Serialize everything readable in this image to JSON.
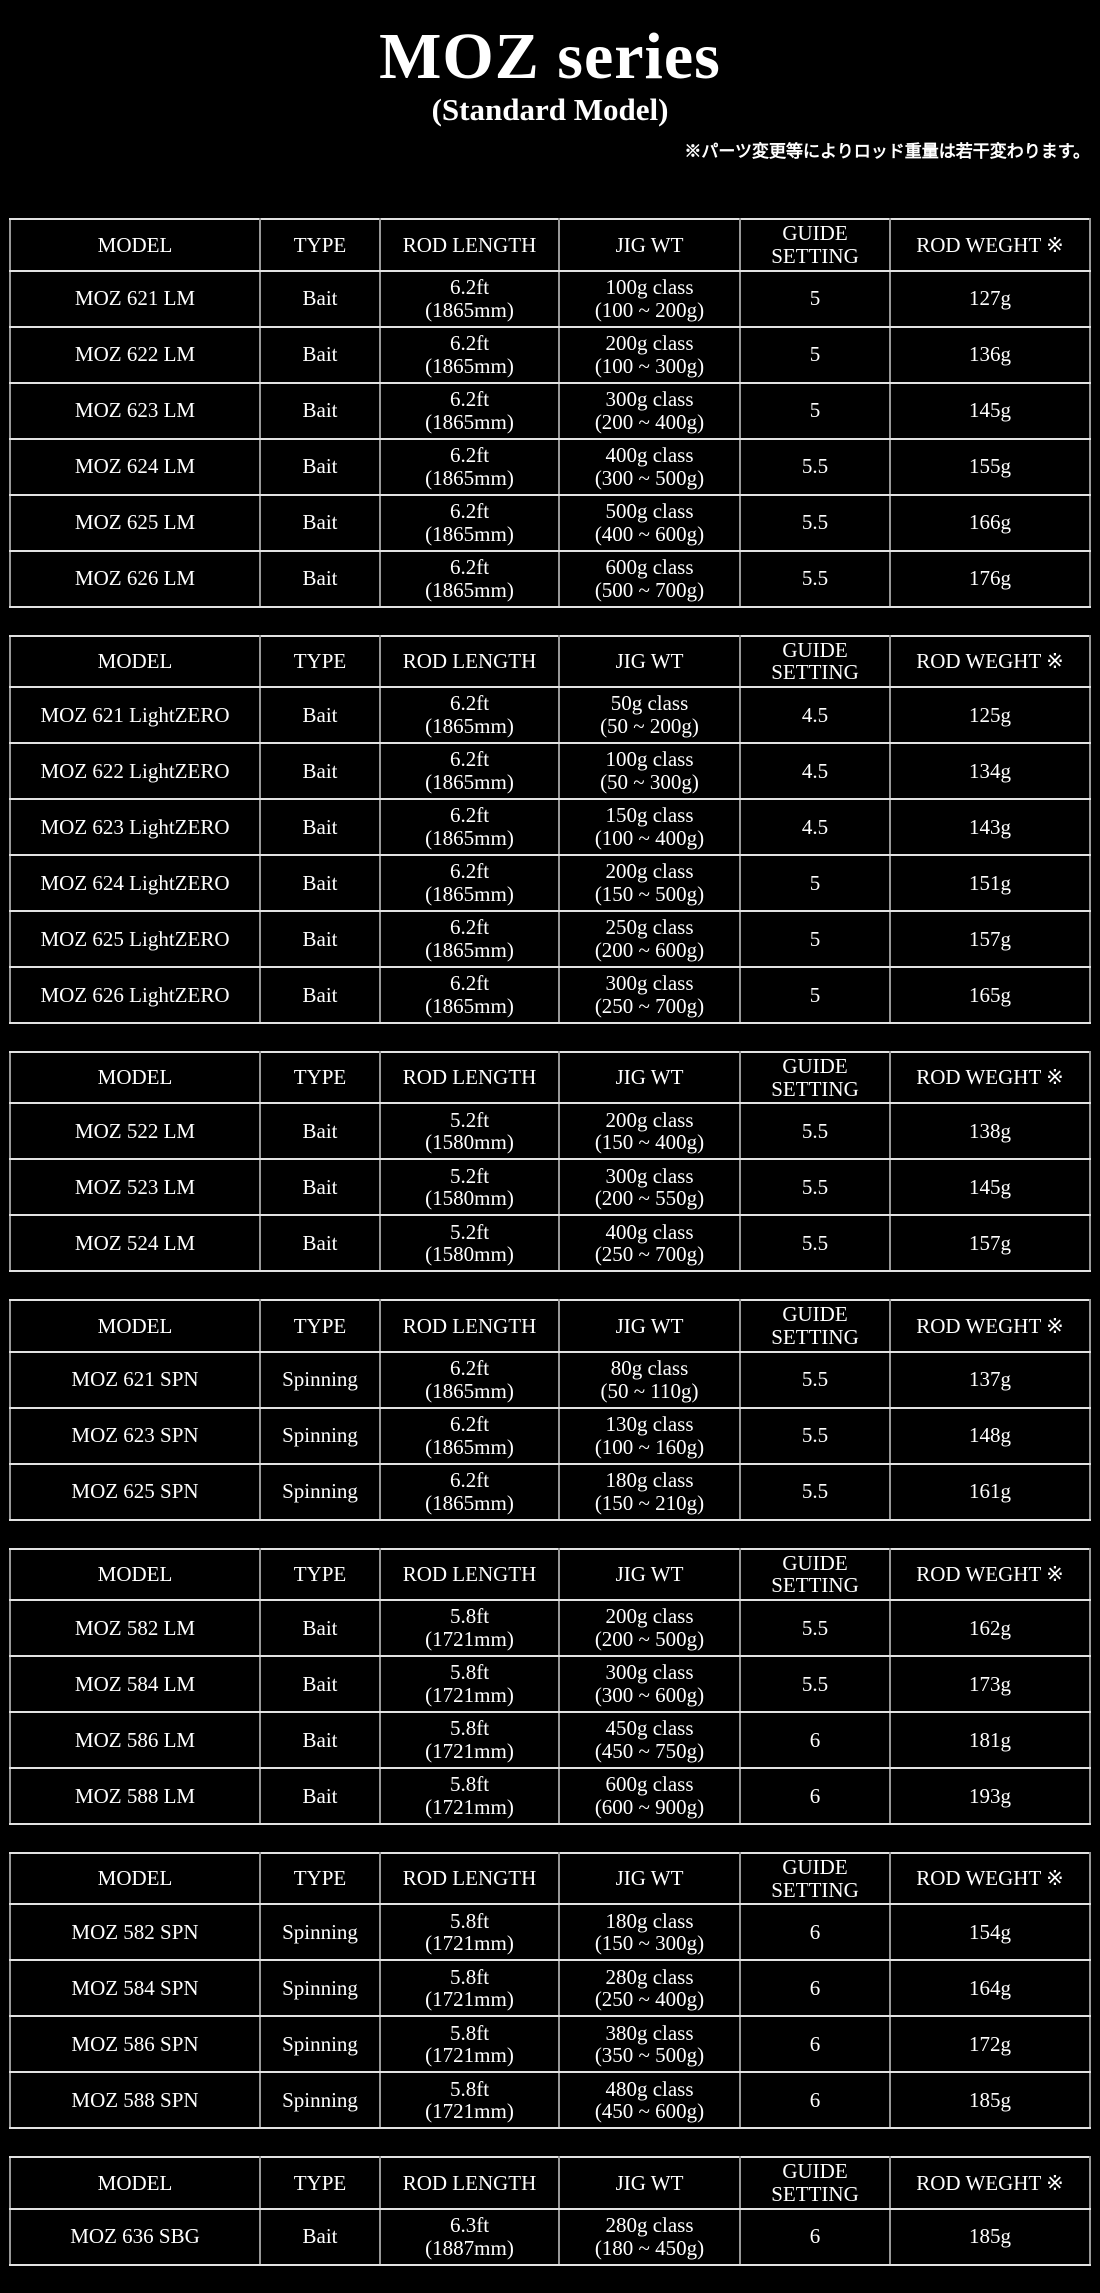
{
  "title": "MOZ series",
  "subtitle": "(Standard Model)",
  "note": "※パーツ変更等によりロッド重量は若干変わります。",
  "colors": {
    "background": "#000000",
    "text": "#ffffff",
    "table_border_light": "#e2e2e2",
    "table_border_gray": "#989898"
  },
  "columns": [
    "MODEL",
    "TYPE",
    "ROD LENGTH",
    "JIG WT",
    "GUIDE\nSETTING",
    "ROD WEGHT ※"
  ],
  "tables": [
    {
      "rows": [
        {
          "model": "MOZ 621 LM",
          "type": "Bait",
          "rod_length": "6.2ft\n(1865mm)",
          "jig_wt": "100g class\n(100 ~ 200g)",
          "guide_setting": "5",
          "rod_weight": "127g"
        },
        {
          "model": "MOZ 622 LM",
          "type": "Bait",
          "rod_length": "6.2ft\n(1865mm)",
          "jig_wt": "200g class\n(100 ~ 300g)",
          "guide_setting": "5",
          "rod_weight": "136g"
        },
        {
          "model": "MOZ 623 LM",
          "type": "Bait",
          "rod_length": "6.2ft\n(1865mm)",
          "jig_wt": "300g class\n(200 ~ 400g)",
          "guide_setting": "5",
          "rod_weight": "145g"
        },
        {
          "model": "MOZ 624 LM",
          "type": "Bait",
          "rod_length": "6.2ft\n(1865mm)",
          "jig_wt": "400g class\n(300 ~ 500g)",
          "guide_setting": "5.5",
          "rod_weight": "155g"
        },
        {
          "model": "MOZ 625 LM",
          "type": "Bait",
          "rod_length": "6.2ft\n(1865mm)",
          "jig_wt": "500g class\n(400 ~ 600g)",
          "guide_setting": "5.5",
          "rod_weight": "166g"
        },
        {
          "model": "MOZ 626 LM",
          "type": "Bait",
          "rod_length": "6.2ft\n(1865mm)",
          "jig_wt": "600g class\n(500 ~ 700g)",
          "guide_setting": "5.5",
          "rod_weight": "176g"
        }
      ]
    },
    {
      "rows": [
        {
          "model": "MOZ 621 LightZERO",
          "type": "Bait",
          "rod_length": "6.2ft\n(1865mm)",
          "jig_wt": "50g class\n(50 ~ 200g)",
          "guide_setting": "4.5",
          "rod_weight": "125g"
        },
        {
          "model": "MOZ 622 LightZERO",
          "type": "Bait",
          "rod_length": "6.2ft\n(1865mm)",
          "jig_wt": "100g class\n(50 ~ 300g)",
          "guide_setting": "4.5",
          "rod_weight": "134g"
        },
        {
          "model": "MOZ 623 LightZERO",
          "type": "Bait",
          "rod_length": "6.2ft\n(1865mm)",
          "jig_wt": "150g class\n(100 ~ 400g)",
          "guide_setting": "4.5",
          "rod_weight": "143g"
        },
        {
          "model": "MOZ 624 LightZERO",
          "type": "Bait",
          "rod_length": "6.2ft\n(1865mm)",
          "jig_wt": "200g class\n(150 ~ 500g)",
          "guide_setting": "5",
          "rod_weight": "151g"
        },
        {
          "model": "MOZ 625 LightZERO",
          "type": "Bait",
          "rod_length": "6.2ft\n(1865mm)",
          "jig_wt": "250g class\n(200 ~ 600g)",
          "guide_setting": "5",
          "rod_weight": "157g"
        },
        {
          "model": "MOZ 626 LightZERO",
          "type": "Bait",
          "rod_length": "6.2ft\n(1865mm)",
          "jig_wt": "300g class\n(250 ~ 700g)",
          "guide_setting": "5",
          "rod_weight": "165g"
        }
      ]
    },
    {
      "rows": [
        {
          "model": "MOZ 522 LM",
          "type": "Bait",
          "rod_length": "5.2ft\n(1580mm)",
          "jig_wt": "200g class\n(150 ~ 400g)",
          "guide_setting": "5.5",
          "rod_weight": "138g"
        },
        {
          "model": "MOZ 523 LM",
          "type": "Bait",
          "rod_length": "5.2ft\n(1580mm)",
          "jig_wt": "300g class\n(200 ~ 550g)",
          "guide_setting": "5.5",
          "rod_weight": "145g"
        },
        {
          "model": "MOZ 524 LM",
          "type": "Bait",
          "rod_length": "5.2ft\n(1580mm)",
          "jig_wt": "400g class\n(250 ~ 700g)",
          "guide_setting": "5.5",
          "rod_weight": "157g"
        }
      ]
    },
    {
      "rows": [
        {
          "model": "MOZ 621 SPN",
          "type": "Spinning",
          "rod_length": "6.2ft\n(1865mm)",
          "jig_wt": "80g class\n(50 ~ 110g)",
          "guide_setting": "5.5",
          "rod_weight": "137g"
        },
        {
          "model": "MOZ 623 SPN",
          "type": "Spinning",
          "rod_length": "6.2ft\n(1865mm)",
          "jig_wt": "130g class\n(100 ~ 160g)",
          "guide_setting": "5.5",
          "rod_weight": "148g"
        },
        {
          "model": "MOZ 625 SPN",
          "type": "Spinning",
          "rod_length": "6.2ft\n(1865mm)",
          "jig_wt": "180g class\n(150 ~ 210g)",
          "guide_setting": "5.5",
          "rod_weight": "161g"
        }
      ]
    },
    {
      "rows": [
        {
          "model": "MOZ 582 LM",
          "type": "Bait",
          "rod_length": "5.8ft\n(1721mm)",
          "jig_wt": "200g class\n(200 ~ 500g)",
          "guide_setting": "5.5",
          "rod_weight": "162g"
        },
        {
          "model": "MOZ 584 LM",
          "type": "Bait",
          "rod_length": "5.8ft\n(1721mm)",
          "jig_wt": "300g class\n(300 ~ 600g)",
          "guide_setting": "5.5",
          "rod_weight": "173g"
        },
        {
          "model": "MOZ 586 LM",
          "type": "Bait",
          "rod_length": "5.8ft\n(1721mm)",
          "jig_wt": "450g class\n(450 ~ 750g)",
          "guide_setting": "6",
          "rod_weight": "181g"
        },
        {
          "model": "MOZ 588 LM",
          "type": "Bait",
          "rod_length": "5.8ft\n(1721mm)",
          "jig_wt": "600g class\n(600 ~ 900g)",
          "guide_setting": "6",
          "rod_weight": "193g"
        }
      ]
    },
    {
      "rows": [
        {
          "model": "MOZ 582 SPN",
          "type": "Spinning",
          "rod_length": "5.8ft\n(1721mm)",
          "jig_wt": "180g class\n(150 ~ 300g)",
          "guide_setting": "6",
          "rod_weight": "154g"
        },
        {
          "model": "MOZ 584 SPN",
          "type": "Spinning",
          "rod_length": "5.8ft\n(1721mm)",
          "jig_wt": "280g class\n(250 ~ 400g)",
          "guide_setting": "6",
          "rod_weight": "164g"
        },
        {
          "model": "MOZ 586 SPN",
          "type": "Spinning",
          "rod_length": "5.8ft\n(1721mm)",
          "jig_wt": "380g class\n(350 ~ 500g)",
          "guide_setting": "6",
          "rod_weight": "172g"
        },
        {
          "model": "MOZ 588 SPN",
          "type": "Spinning",
          "rod_length": "5.8ft\n(1721mm)",
          "jig_wt": "480g class\n(450 ~ 600g)",
          "guide_setting": "6",
          "rod_weight": "185g"
        }
      ]
    },
    {
      "rows": [
        {
          "model": "MOZ 636 SBG",
          "type": "Bait",
          "rod_length": "6.3ft\n(1887mm)",
          "jig_wt": "280g class\n(180 ~ 450g)",
          "guide_setting": "6",
          "rod_weight": "185g"
        }
      ]
    }
  ]
}
